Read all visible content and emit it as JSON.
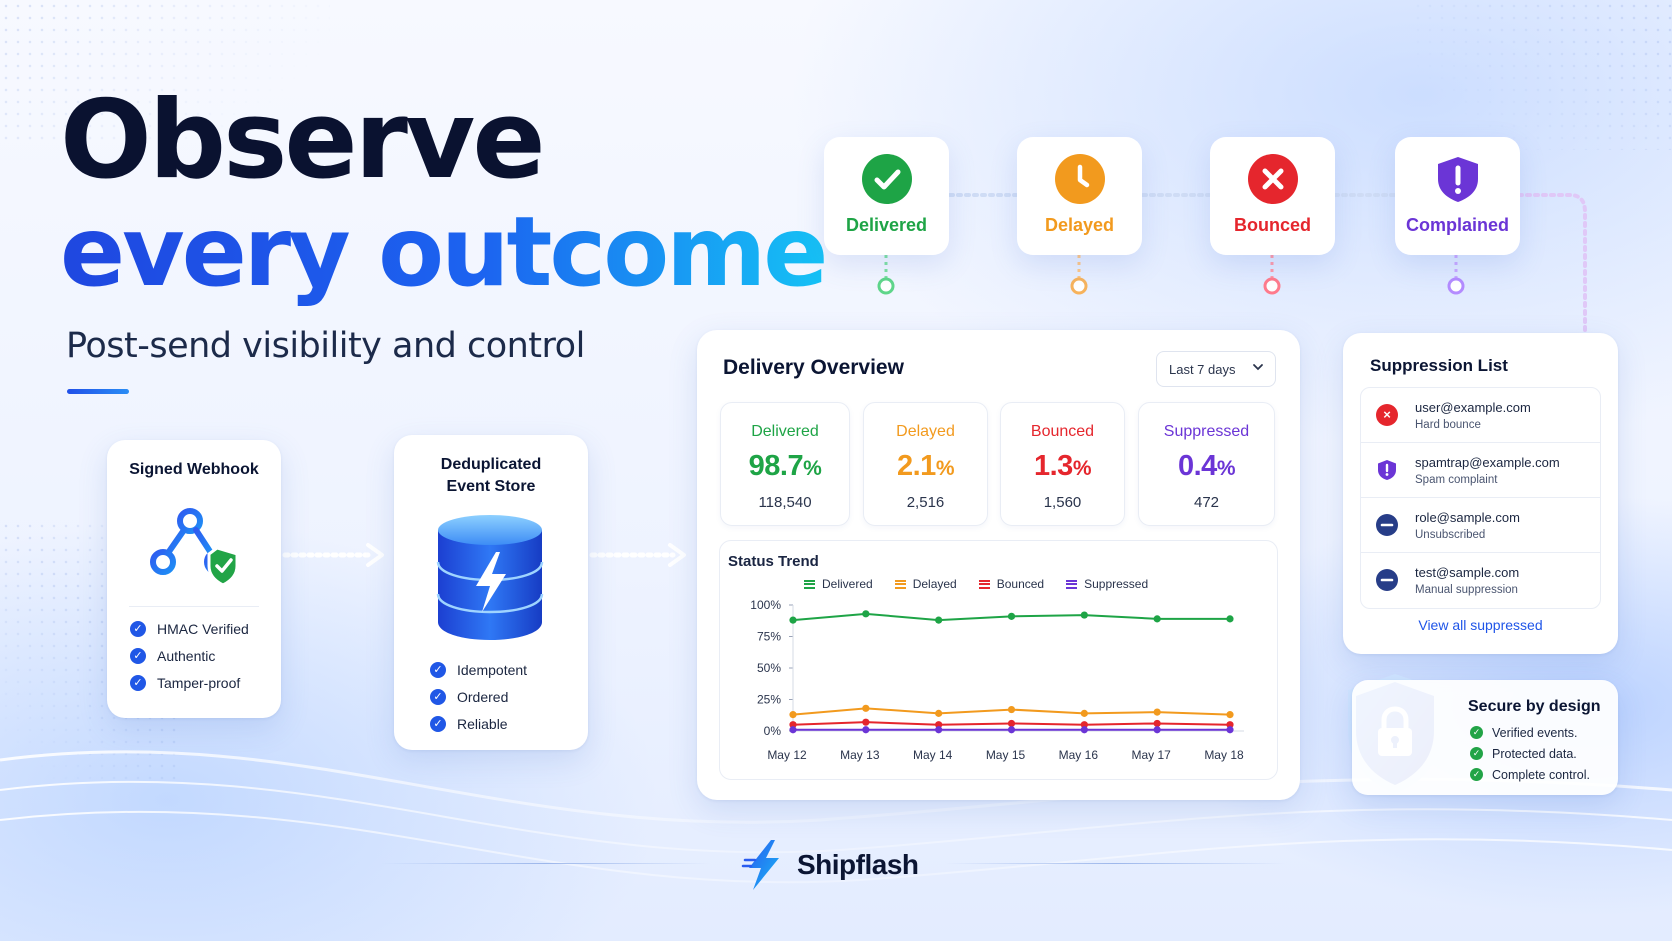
{
  "hero": {
    "line1": "Observe",
    "line2": "every outcome",
    "subtitle": "Post-send visibility and control"
  },
  "webhook_card": {
    "title": "Signed Webhook",
    "items": [
      "HMAC Verified",
      "Authentic",
      "Tamper-proof"
    ]
  },
  "store_card": {
    "title_line1": "Deduplicated",
    "title_line2": "Event Store",
    "items": [
      "Idempotent",
      "Ordered",
      "Reliable"
    ]
  },
  "status_tiles": [
    {
      "label": "Delivered",
      "color": "#1ea446",
      "icon": "check-circle-icon"
    },
    {
      "label": "Delayed",
      "color": "#f29a1e",
      "icon": "clock-icon"
    },
    {
      "label": "Bounced",
      "color": "#e5262d",
      "icon": "x-circle-icon"
    },
    {
      "label": "Complained",
      "color": "#6b35d6",
      "icon": "shield-alert-icon"
    }
  ],
  "overview": {
    "title": "Delivery Overview",
    "range": "Last 7 days",
    "stats": [
      {
        "label": "Delivered",
        "value": "98.7",
        "unit": "%",
        "count": "118,540",
        "color": "#1ea446"
      },
      {
        "label": "Delayed",
        "value": "2.1",
        "unit": "%",
        "count": "2,516",
        "color": "#f29a1e"
      },
      {
        "label": "Bounced",
        "value": "1.3",
        "unit": "%",
        "count": "1,560",
        "color": "#e5262d"
      },
      {
        "label": "Suppressed",
        "value": "0.4",
        "unit": "%",
        "count": "472",
        "color": "#6b35d6"
      }
    ],
    "trend_title": "Status Trend"
  },
  "chart_data": {
    "type": "line",
    "title": "Status Trend",
    "categories": [
      "May 12",
      "May 13",
      "May 14",
      "May 15",
      "May 16",
      "May 17",
      "May 18"
    ],
    "yticks": [
      "100%",
      "75%",
      "50%",
      "25%",
      "0%"
    ],
    "ylim": [
      0,
      100
    ],
    "legend_position": "top",
    "series": [
      {
        "name": "Delivered",
        "color": "#1ea446",
        "values": [
          88,
          93,
          88,
          91,
          92,
          89,
          89
        ]
      },
      {
        "name": "Delayed",
        "color": "#f29a1e",
        "values": [
          13,
          18,
          14,
          17,
          14,
          15,
          13
        ]
      },
      {
        "name": "Bounced",
        "color": "#e5262d",
        "values": [
          5,
          7,
          5,
          6,
          5,
          6,
          5
        ]
      },
      {
        "name": "Suppressed",
        "color": "#6b35d6",
        "values": [
          1,
          1,
          1,
          1,
          1,
          1,
          1
        ]
      }
    ]
  },
  "suppression": {
    "title": "Suppression List",
    "rows": [
      {
        "email": "user@example.com",
        "reason": "Hard bounce",
        "icon": "x-circle-icon",
        "color": "#e5262d"
      },
      {
        "email": "spamtrap@example.com",
        "reason": "Spam complaint",
        "icon": "shield-alert-icon",
        "color": "#6b35d6"
      },
      {
        "email": "role@sample.com",
        "reason": "Unsubscribed",
        "icon": "minus-circle-icon",
        "color": "#273d88"
      },
      {
        "email": "test@sample.com",
        "reason": "Manual suppression",
        "icon": "minus-circle-icon",
        "color": "#273d88"
      }
    ],
    "link": "View all suppressed"
  },
  "secure": {
    "title": "Secure by design",
    "items": [
      "Verified events.",
      "Protected data.",
      "Complete control."
    ]
  },
  "brand": {
    "name": "Shipflash"
  }
}
